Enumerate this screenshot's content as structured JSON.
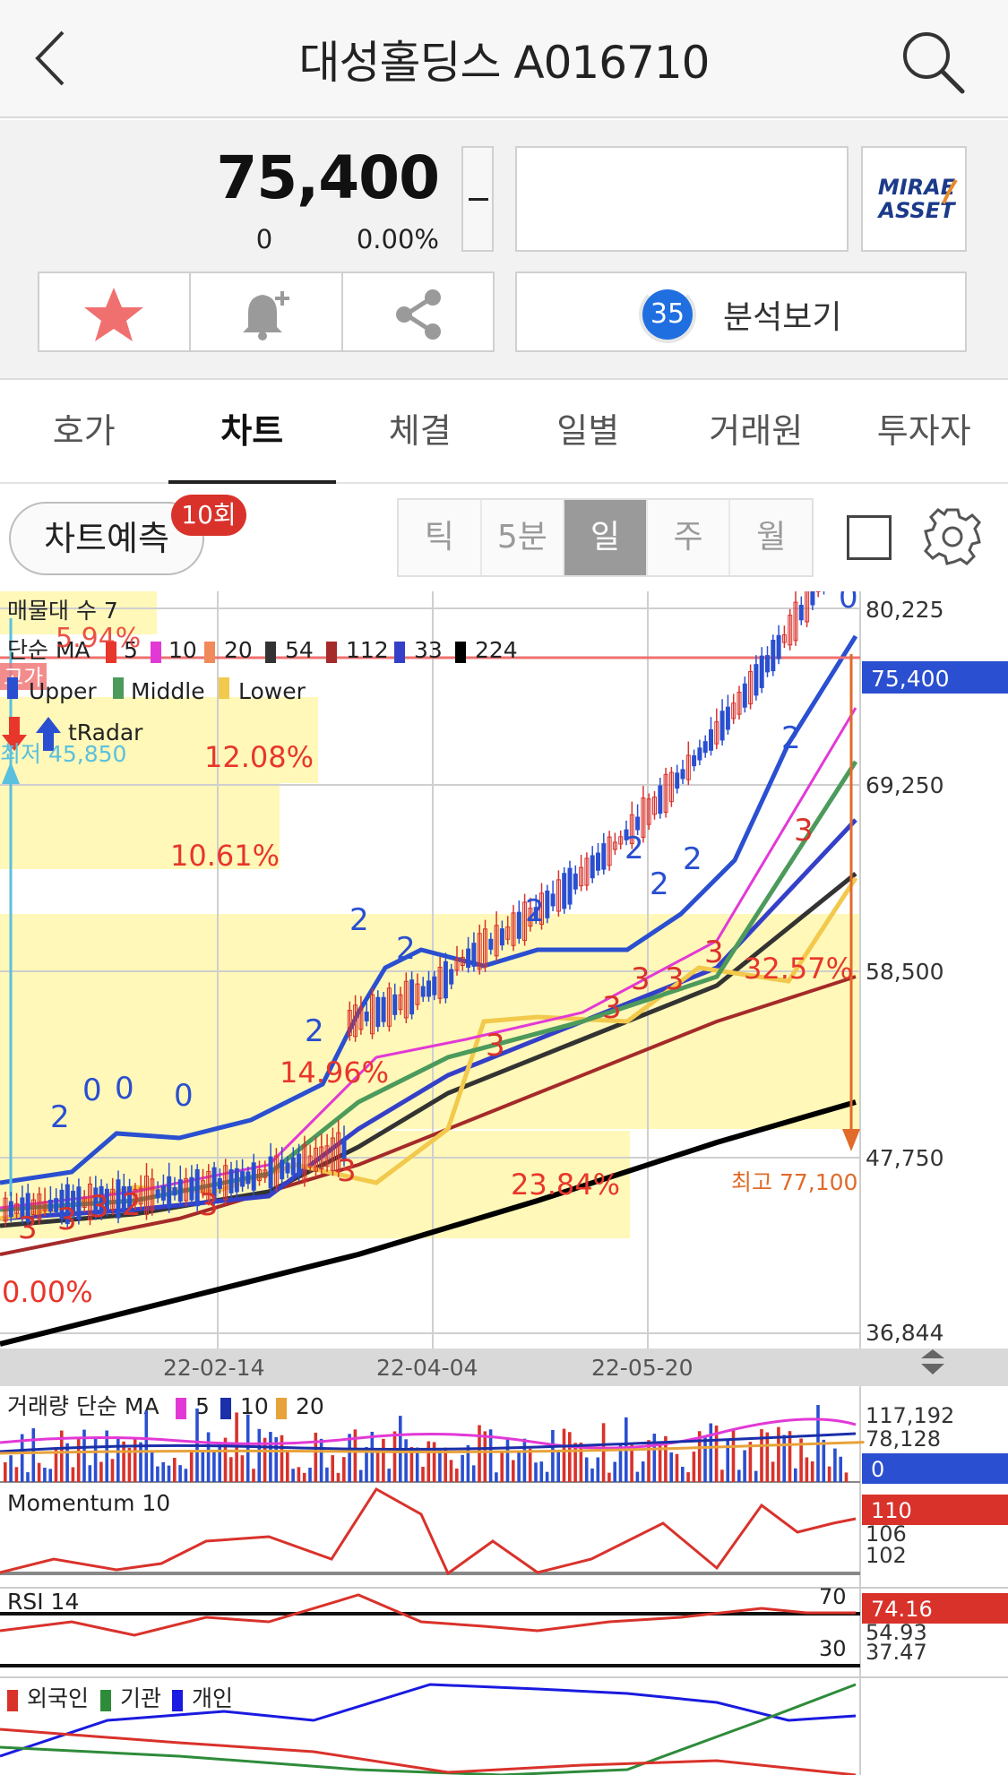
{
  "header": {
    "title": "대성홀딩스 A016710",
    "back_icon": "chevron-left-icon",
    "search_icon": "search-icon"
  },
  "quote": {
    "price": "75,400",
    "change": "0",
    "change_pct": "0.00%"
  },
  "brand": {
    "line1": "MIRAE",
    "line2": "ASSET"
  },
  "actions": {
    "favorite_icon": "star-icon",
    "alert_icon": "bell-plus-icon",
    "share_icon": "share-icon"
  },
  "analysis": {
    "score": "35",
    "label": "분석보기"
  },
  "tabs": [
    {
      "label": "호가",
      "active": false
    },
    {
      "label": "차트",
      "active": true
    },
    {
      "label": "체결",
      "active": false
    },
    {
      "label": "일별",
      "active": false
    },
    {
      "label": "거래원",
      "active": false
    },
    {
      "label": "투자자",
      "active": false
    }
  ],
  "toolbar": {
    "predict_label": "차트예측",
    "predict_badge": "10회",
    "periods": [
      {
        "label": "틱",
        "active": false
      },
      {
        "label": "5분",
        "active": false
      },
      {
        "label": "일",
        "active": true
      },
      {
        "label": "주",
        "active": false
      },
      {
        "label": "월",
        "active": false
      }
    ]
  },
  "colors": {
    "up": "#d9322b",
    "down": "#2a4fd0",
    "accent": "#1f6fe0",
    "highlight": "#fff8b8"
  },
  "chart_data": [
    {
      "type": "candlestick",
      "legend": {
        "volume_profile": "매물대 수 7",
        "ma_label": "단순 MA",
        "ma": [
          {
            "name": "5",
            "color": "#e8362b"
          },
          {
            "name": "10",
            "color": "#e239d6"
          },
          {
            "name": "20",
            "color": "#f08a5a"
          },
          {
            "name": "54",
            "color": "#333333"
          },
          {
            "name": "112",
            "color": "#a52a2a"
          },
          {
            "name": "33",
            "color": "#3440c8"
          },
          {
            "name": "224",
            "color": "#000000"
          }
        ],
        "bollinger": [
          {
            "name": "Upper",
            "color": "#2a4fd0"
          },
          {
            "name": "Middle",
            "color": "#4c9a5c"
          },
          {
            "name": "Lower",
            "color": "#f2c94c"
          }
        ],
        "radar": "tRadar"
      },
      "y_ticks": [
        "80,225",
        "69,250",
        "58,500",
        "47,750",
        "36,844"
      ],
      "current_price_label": "75,400",
      "x_ticks": [
        "22-02-14",
        "22-04-04",
        "22-05-20"
      ],
      "annotations": {
        "low": "최저 45,850",
        "high": "최고 77,100",
        "gap_label": "고가",
        "top_pct": "5.94%",
        "volume_profile_pcts": [
          "12.08%",
          "10.61%",
          "14.96%",
          "32.57%",
          "23.84%",
          "0.00%"
        ],
        "signals_up": [
          "2",
          "0",
          "0",
          "0",
          "2",
          "2",
          "2",
          "2",
          "2",
          "2",
          "2",
          "2",
          "0"
        ],
        "signals_down": [
          "3",
          "3",
          "3",
          "2",
          "3",
          "3",
          "3",
          "3",
          "3",
          "3",
          "3",
          "3"
        ]
      }
    },
    {
      "type": "bar",
      "title": "거래량 단순 MA",
      "ma": [
        {
          "name": "5",
          "color": "#e239d6"
        },
        {
          "name": "10",
          "color": "#1a2fa8"
        },
        {
          "name": "20",
          "color": "#e8a23a"
        }
      ],
      "y_ticks": [
        "117,192",
        "78,128"
      ],
      "current_label": "0"
    },
    {
      "type": "line",
      "title": "Momentum 10",
      "y_ticks": [
        "106",
        "102"
      ],
      "current_label": "110"
    },
    {
      "type": "line",
      "title": "RSI 14",
      "levels": [
        "70",
        "30"
      ],
      "y_ticks": [
        "54.93",
        "37.47"
      ],
      "current_label": "74.16"
    },
    {
      "type": "line",
      "series": [
        {
          "name": "외국인",
          "color": "#d9322b"
        },
        {
          "name": "기관",
          "color": "#2e8b3a"
        },
        {
          "name": "개인",
          "color": "#1a1ae0"
        }
      ]
    }
  ]
}
